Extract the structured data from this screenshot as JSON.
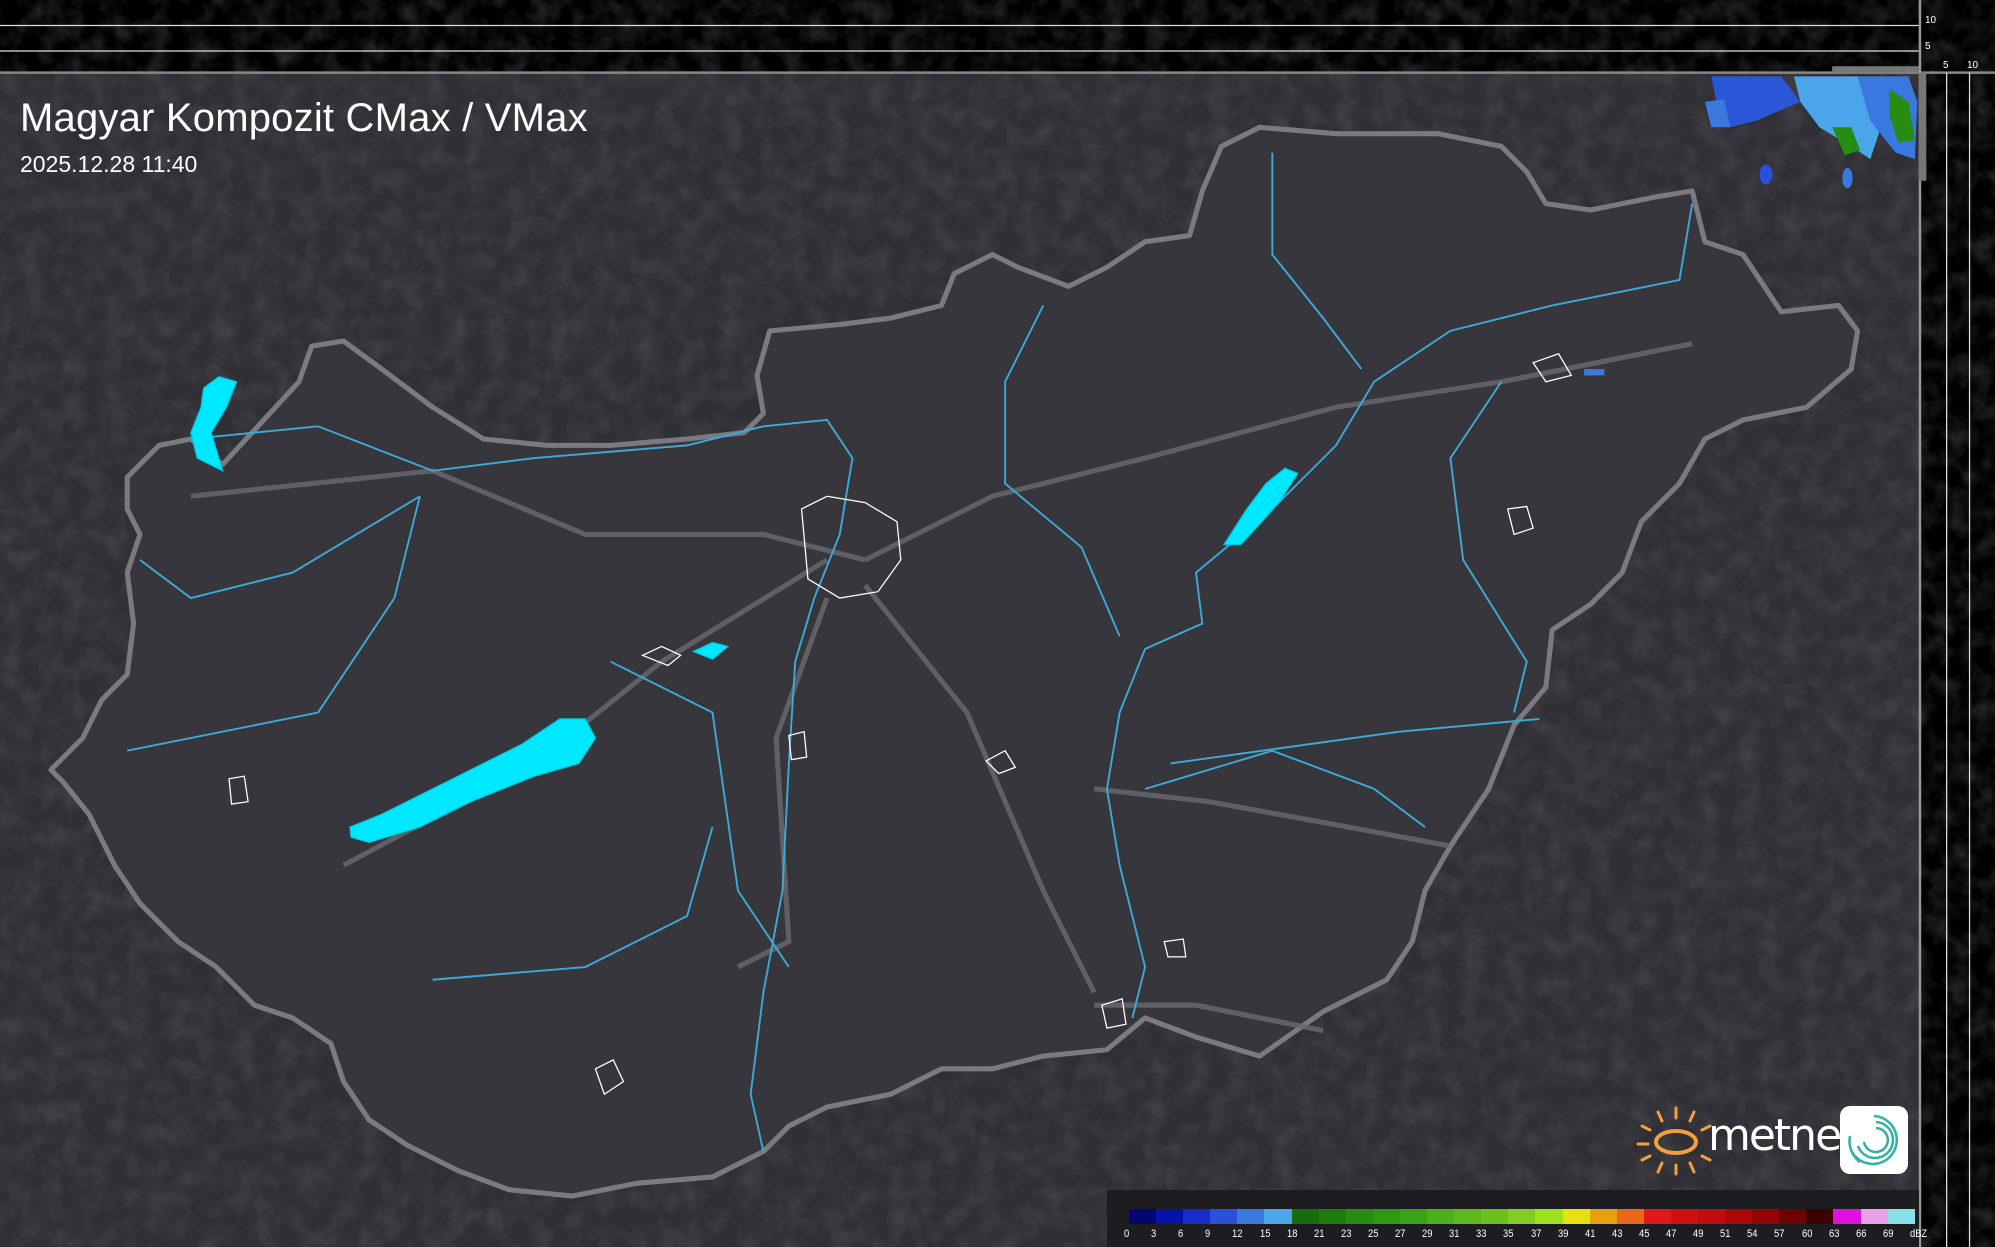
{
  "header": {
    "title": "Magyar Kompozit CMax / VMax",
    "timestamp": "2025.12.28 11:40"
  },
  "side_profile": {
    "vertical_labels": [
      "10",
      "5"
    ],
    "horizontal_labels": [
      "5",
      "10"
    ]
  },
  "legend": {
    "unit": "dBZ",
    "values": [
      "0",
      "3",
      "6",
      "9",
      "12",
      "15",
      "18",
      "21",
      "23",
      "25",
      "27",
      "29",
      "31",
      "33",
      "35",
      "37",
      "39",
      "41",
      "43",
      "45",
      "47",
      "49",
      "51",
      "54",
      "57",
      "60",
      "63",
      "66",
      "69"
    ],
    "colors": [
      "#040670",
      "#0612a8",
      "#1a2cc8",
      "#2a4fd8",
      "#3a78e0",
      "#4aa6e8",
      "#186c10",
      "#1e7c0e",
      "#268c12",
      "#2e9a14",
      "#3aa418",
      "#4cb01c",
      "#5cb81e",
      "#6cc01e",
      "#84cc22",
      "#9ce01e",
      "#e8e010",
      "#e8a010",
      "#e86818",
      "#e01818",
      "#d01010",
      "#c00c0c",
      "#a80808",
      "#900606",
      "#6c0404",
      "#3c0202",
      "#e010e0",
      "#e8a0e8",
      "#88e0e8"
    ]
  },
  "branding": {
    "logo_text": "metnet"
  },
  "colors": {
    "background": "#2f2f35",
    "border": "#7a7a80",
    "water": "#00e8ff",
    "river": "#3fa9d6",
    "road": "#707075"
  }
}
